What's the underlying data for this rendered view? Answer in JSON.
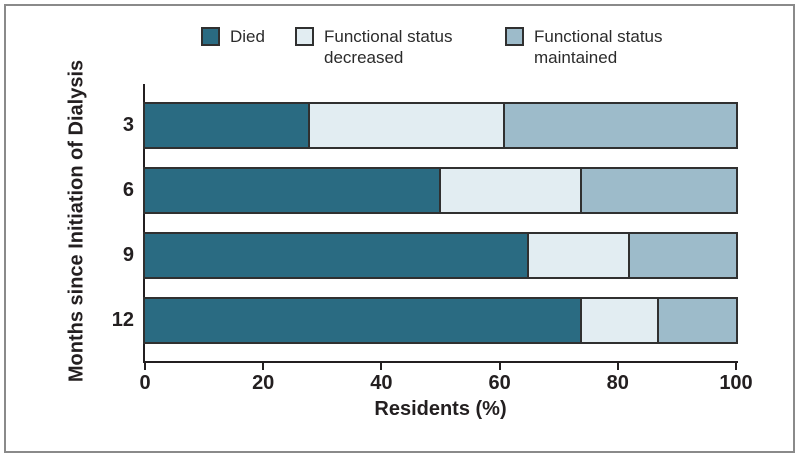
{
  "chart_data": {
    "type": "bar",
    "orientation": "horizontal",
    "stacked": true,
    "categories": [
      "3",
      "6",
      "9",
      "12"
    ],
    "series": [
      {
        "name": "Died",
        "color": "#2a6b82",
        "values": [
          28,
          50,
          65,
          74
        ]
      },
      {
        "name": "Functional status decreased",
        "color": "#e2edf2",
        "values": [
          33,
          24,
          17,
          13
        ]
      },
      {
        "name": "Functional status maintained",
        "color": "#9dbbca",
        "values": [
          39,
          26,
          18,
          13
        ]
      }
    ],
    "title": "",
    "xlabel": "Residents (%)",
    "ylabel": "Months since Initiation of Dialysis",
    "xlim": [
      0,
      100
    ],
    "xticks": [
      0,
      20,
      40,
      60,
      80,
      100
    ],
    "legend_position": "top",
    "grid": false,
    "colors": {
      "bar_border": "#303030",
      "axis": "#231f20",
      "text": "#231f20",
      "frame_border": "#8a8a8a",
      "background": "#ffffff"
    }
  }
}
